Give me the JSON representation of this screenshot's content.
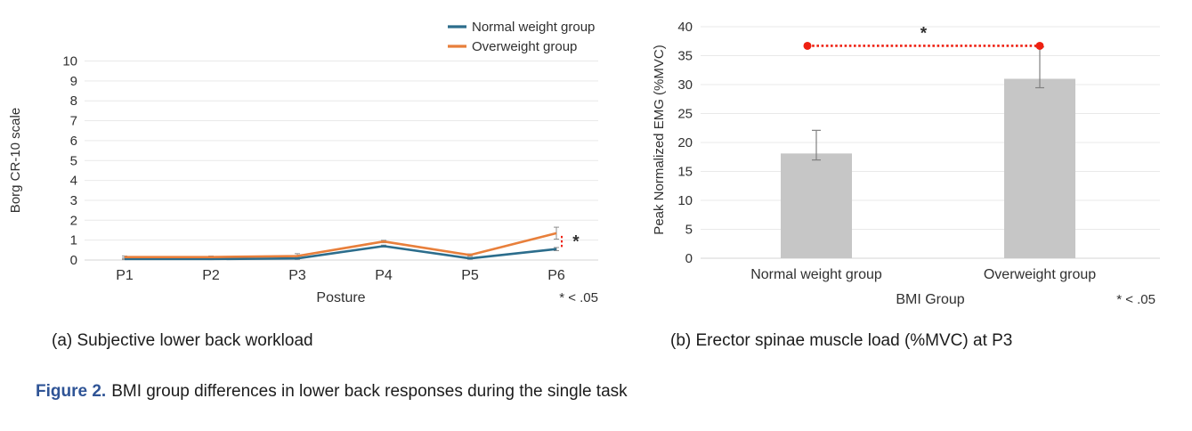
{
  "figure_caption": {
    "label": "Figure 2.",
    "text": "BMI group differences in lower back responses during the single task",
    "label_color": "#2f5496"
  },
  "panels": [
    {
      "caption": "(a) Subjective lower back workload"
    },
    {
      "caption": "(b) Erector spinae muscle load (%MVC) at P3"
    }
  ],
  "colors": {
    "normal_weight_line": "#2c6d8c",
    "overweight_line": "#e87f3b",
    "significance_red": "#ee2011",
    "bar_fill": "#c6c6c6",
    "gridline": "#e9e9e9",
    "baseline": "#d6d6d6",
    "error_bar": "#8f8f8f",
    "axis_text": "#303030"
  },
  "chart_data": [
    {
      "type": "line",
      "title": "",
      "xlabel": "Posture",
      "ylabel": "Borg CR-10 scale",
      "categories": [
        "P1",
        "P2",
        "P3",
        "P4",
        "P5",
        "P6"
      ],
      "ylim": [
        0,
        10
      ],
      "ytick_step": 1,
      "grid": true,
      "legend_position": "top-right",
      "series": [
        {
          "name": "Normal weight group",
          "color": "#2c6d8c",
          "values": [
            0.05,
            0.05,
            0.08,
            0.7,
            0.08,
            0.55
          ],
          "errors": [
            0.03,
            0.03,
            0.05,
            0.05,
            0.04,
            0.08
          ]
        },
        {
          "name": "Overweight group",
          "color": "#e87f3b",
          "values": [
            0.15,
            0.15,
            0.2,
            0.93,
            0.25,
            1.35
          ],
          "errors": [
            0.05,
            0.05,
            0.12,
            0.06,
            0.06,
            0.3
          ]
        }
      ],
      "significance": {
        "at_category": "P6",
        "marker": "*",
        "style": "vertical-dashed-line-between-series"
      },
      "note": "* < .05"
    },
    {
      "type": "bar",
      "title": "",
      "xlabel": "BMI Group",
      "ylabel": "Peak Normalized EMG (%MVC)",
      "categories": [
        "Normal weight group",
        "Overweight group"
      ],
      "values": [
        18.1,
        31
      ],
      "errors": [
        4,
        5.5
      ],
      "ylim": [
        0,
        40
      ],
      "ytick_step": 5,
      "grid": true,
      "significance": {
        "between": [
          "Normal weight group",
          "Overweight group"
        ],
        "line_y": 36.7,
        "marker": "*",
        "style": "horizontal-dotted-line-with-end-dots"
      },
      "note": "* < .05"
    }
  ]
}
